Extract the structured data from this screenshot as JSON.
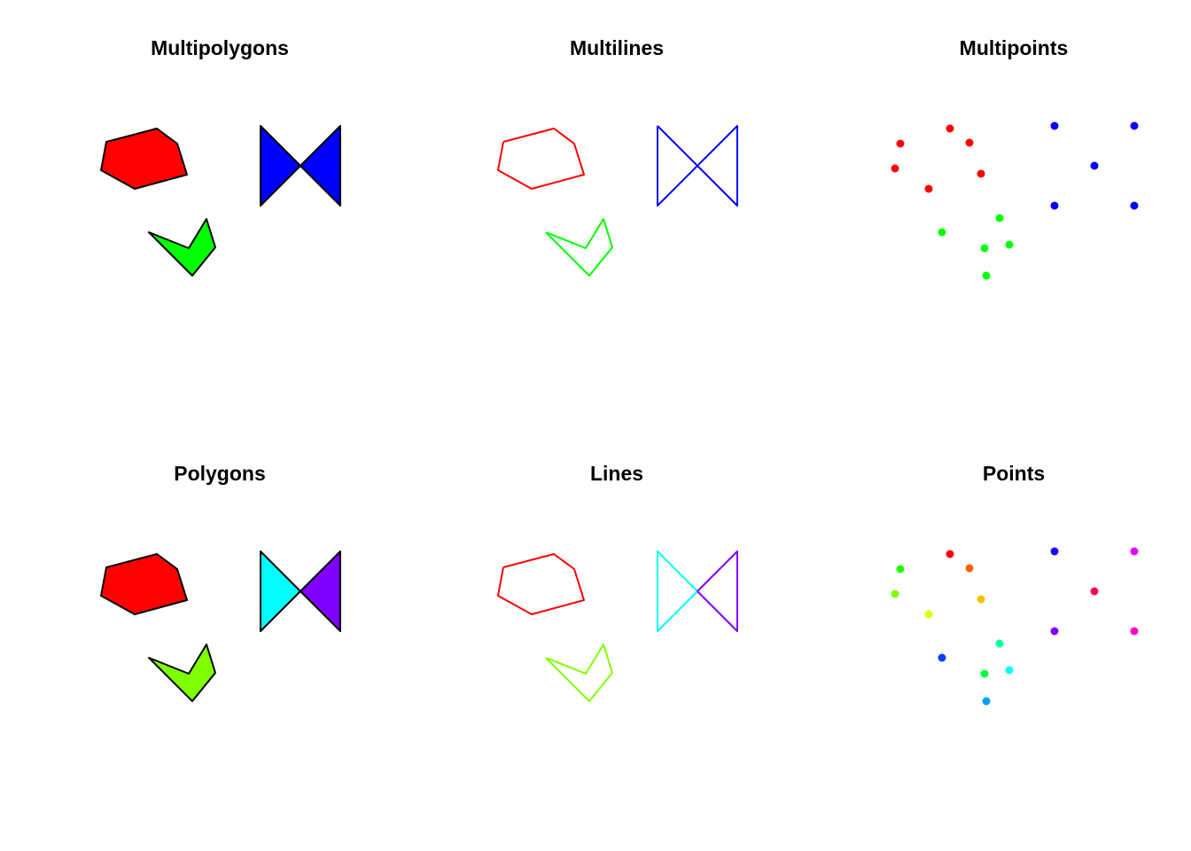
{
  "panels": [
    {
      "title": "Multipolygons",
      "kind": "polygon",
      "shapes": [
        {
          "name": "hexagon",
          "color": "#FF0000"
        },
        {
          "name": "bowtie-left",
          "color": "#0000FF"
        },
        {
          "name": "bowtie-right",
          "color": "#0000FF"
        },
        {
          "name": "chevron",
          "color": "#00FF00"
        }
      ]
    },
    {
      "title": "Multilines",
      "kind": "line",
      "shapes": [
        {
          "name": "hexagon",
          "color": "#FF0000"
        },
        {
          "name": "bowtie",
          "color": "#0000FF"
        },
        {
          "name": "chevron",
          "color": "#00FF00"
        }
      ]
    },
    {
      "title": "Multipoints",
      "kind": "point",
      "groups": [
        {
          "name": "red-points",
          "color": "#FF0000",
          "count": 6
        },
        {
          "name": "blue-points",
          "color": "#0000FF",
          "count": 5
        },
        {
          "name": "green-points",
          "color": "#00FF00",
          "count": 5
        }
      ]
    },
    {
      "title": "Polygons",
      "kind": "polygon",
      "shapes": [
        {
          "name": "hexagon",
          "color": "#FF0000"
        },
        {
          "name": "bowtie-left",
          "color": "#00FFFF"
        },
        {
          "name": "bowtie-right",
          "color": "#8000FF"
        },
        {
          "name": "chevron",
          "color": "#80FF00"
        }
      ]
    },
    {
      "title": "Lines",
      "kind": "line",
      "shapes": [
        {
          "name": "hexagon",
          "color": "#FF0000"
        },
        {
          "name": "bowtie-left",
          "color": "#00FFFF"
        },
        {
          "name": "bowtie-right",
          "color": "#8000FF"
        },
        {
          "name": "chevron",
          "color": "#80FF00"
        }
      ]
    },
    {
      "title": "Points",
      "kind": "point",
      "point_colors": [
        "#FF0000",
        "#FF6000",
        "#FFBF00",
        "#DFFF00",
        "#80FF00",
        "#20FF00",
        "#00FF40",
        "#00FF9F",
        "#00FFFF",
        "#009FFF",
        "#0040FF",
        "#2000FF",
        "#8000FF",
        "#DF00FF",
        "#FF00BF",
        "#FF0060"
      ]
    }
  ]
}
